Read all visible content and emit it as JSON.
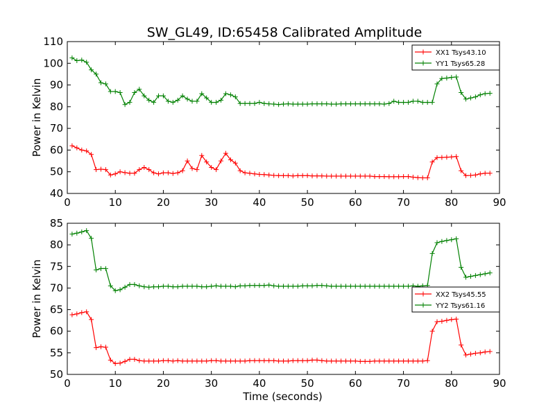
{
  "figure": {
    "title": "SW_GL49, ID:65458 Calibrated Amplitude"
  },
  "chart_data": [
    {
      "type": "line",
      "title": "SW_GL49, ID:65458 Calibrated Amplitude",
      "xlabel": "",
      "ylabel": "Power in Kelvin",
      "xlim": [
        0,
        90
      ],
      "ylim": [
        40,
        110
      ],
      "xticks": [
        0,
        10,
        20,
        30,
        40,
        50,
        60,
        70,
        80,
        90
      ],
      "yticks": [
        40,
        50,
        60,
        70,
        80,
        90,
        100,
        110
      ],
      "grid": false,
      "legend": "top-right",
      "x": [
        1,
        2,
        3,
        4,
        5,
        6,
        7,
        8,
        9,
        10,
        11,
        12,
        13,
        14,
        15,
        16,
        17,
        18,
        19,
        20,
        21,
        22,
        23,
        24,
        25,
        26,
        27,
        28,
        29,
        30,
        31,
        32,
        33,
        34,
        35,
        36,
        37,
        38,
        39,
        40,
        41,
        42,
        43,
        44,
        45,
        46,
        47,
        48,
        49,
        50,
        51,
        52,
        53,
        54,
        55,
        56,
        57,
        58,
        59,
        60,
        61,
        62,
        63,
        64,
        65,
        66,
        67,
        68,
        69,
        70,
        71,
        72,
        73,
        74,
        75,
        76,
        77,
        78,
        79,
        80,
        81,
        82,
        83,
        84,
        85,
        86,
        87,
        88
      ],
      "series": [
        {
          "name": "XX1 Tsys43.10",
          "color": "#ff0000",
          "values": [
            62,
            61,
            60,
            59.6,
            58,
            51,
            51.2,
            51,
            48.5,
            49,
            50,
            49.6,
            49.3,
            49.3,
            51,
            52,
            51,
            49.5,
            49,
            49.5,
            49.5,
            49.2,
            49.5,
            50.5,
            55,
            51.5,
            51,
            57.5,
            54.5,
            52,
            51,
            55,
            58.5,
            55.5,
            54,
            50.5,
            49.5,
            49.3,
            49,
            48.8,
            48.7,
            48.5,
            48.3,
            48.2,
            48.2,
            48.2,
            48.1,
            48.2,
            48.2,
            48.2,
            48.1,
            48.1,
            48.1,
            48,
            48,
            48,
            48,
            48,
            48,
            48,
            48,
            48,
            48,
            47.8,
            47.8,
            47.8,
            47.7,
            47.7,
            47.7,
            47.8,
            47.8,
            47.5,
            47.3,
            47.2,
            47.2,
            54.5,
            56.5,
            56.6,
            56.7,
            56.8,
            57,
            50.5,
            48.2,
            48.3,
            48.5,
            49,
            49.3,
            49.3
          ]
        },
        {
          "name": "YY1 Tsys65.28",
          "color": "#008000",
          "values": [
            102.5,
            101.2,
            101.5,
            100.5,
            97,
            95,
            91,
            90.5,
            87,
            87,
            86.5,
            81,
            82,
            86.5,
            88,
            85,
            83,
            82,
            85,
            85,
            82.5,
            82,
            83,
            85,
            83.5,
            82.5,
            82.5,
            86,
            84,
            82,
            82,
            83,
            86,
            85.5,
            84.5,
            81.5,
            81.5,
            81.5,
            81.5,
            82,
            81.5,
            81.3,
            81.2,
            81,
            81.2,
            81.3,
            81.2,
            81.2,
            81.2,
            81.2,
            81.3,
            81.3,
            81.3,
            81.3,
            81.2,
            81.2,
            81.3,
            81.3,
            81.3,
            81.3,
            81.3,
            81.3,
            81.3,
            81.3,
            81.3,
            81.2,
            81.5,
            82.5,
            82,
            82,
            82,
            82.5,
            82.5,
            82,
            82,
            82,
            90.5,
            93,
            93.2,
            93.5,
            93.7,
            86.5,
            83.5,
            84,
            84.5,
            85.5,
            86,
            86.2
          ]
        }
      ]
    },
    {
      "type": "line",
      "title": "",
      "xlabel": "Time (seconds)",
      "ylabel": "Power in Kelvin",
      "xlim": [
        0,
        90
      ],
      "ylim": [
        50,
        85
      ],
      "xticks": [
        0,
        10,
        20,
        30,
        40,
        50,
        60,
        70,
        80,
        90
      ],
      "yticks": [
        50,
        55,
        60,
        65,
        70,
        75,
        80,
        85
      ],
      "grid": false,
      "legend": "center-right",
      "x": [
        1,
        2,
        3,
        4,
        5,
        6,
        7,
        8,
        9,
        10,
        11,
        12,
        13,
        14,
        15,
        16,
        17,
        18,
        19,
        20,
        21,
        22,
        23,
        24,
        25,
        26,
        27,
        28,
        29,
        30,
        31,
        32,
        33,
        34,
        35,
        36,
        37,
        38,
        39,
        40,
        41,
        42,
        43,
        44,
        45,
        46,
        47,
        48,
        49,
        50,
        51,
        52,
        53,
        54,
        55,
        56,
        57,
        58,
        59,
        60,
        61,
        62,
        63,
        64,
        65,
        66,
        67,
        68,
        69,
        70,
        71,
        72,
        73,
        74,
        75,
        76,
        77,
        78,
        79,
        80,
        81,
        82,
        83,
        84,
        85,
        86,
        87,
        88
      ],
      "series": [
        {
          "name": "XX2 Tsys45.55",
          "color": "#ff0000",
          "values": [
            63.8,
            64,
            64.3,
            64.5,
            62.7,
            56.2,
            56.4,
            56.3,
            53.3,
            52.5,
            52.6,
            53,
            53.5,
            53.5,
            53.2,
            53.1,
            53.1,
            53.1,
            53.1,
            53.2,
            53.2,
            53.1,
            53.2,
            53.1,
            53.1,
            53.1,
            53.1,
            53.1,
            53.1,
            53.2,
            53.2,
            53.1,
            53.1,
            53.1,
            53.1,
            53.1,
            53.1,
            53.2,
            53.2,
            53.2,
            53.2,
            53.2,
            53.2,
            53.1,
            53.1,
            53.1,
            53.2,
            53.2,
            53.2,
            53.2,
            53.3,
            53.3,
            53.2,
            53.1,
            53.1,
            53.1,
            53.1,
            53.1,
            53.1,
            53.1,
            53,
            53,
            53,
            53.1,
            53.1,
            53.1,
            53.1,
            53.1,
            53.1,
            53.1,
            53.1,
            53.1,
            53.1,
            53.1,
            53.2,
            60,
            62.2,
            62.3,
            62.5,
            62.7,
            62.8,
            56.8,
            54.5,
            54.7,
            54.9,
            55,
            55.2,
            55.3
          ]
        },
        {
          "name": "YY2 Tsys61.16",
          "color": "#008000",
          "values": [
            82.5,
            82.7,
            83,
            83.3,
            81.5,
            74.2,
            74.5,
            74.5,
            70.5,
            69.4,
            69.6,
            70.2,
            70.8,
            70.8,
            70.5,
            70.3,
            70.2,
            70.3,
            70.3,
            70.4,
            70.4,
            70.3,
            70.3,
            70.4,
            70.4,
            70.4,
            70.4,
            70.3,
            70.3,
            70.4,
            70.5,
            70.4,
            70.4,
            70.4,
            70.3,
            70.5,
            70.5,
            70.6,
            70.6,
            70.6,
            70.6,
            70.7,
            70.5,
            70.4,
            70.4,
            70.4,
            70.4,
            70.4,
            70.5,
            70.5,
            70.5,
            70.6,
            70.6,
            70.5,
            70.4,
            70.4,
            70.4,
            70.4,
            70.4,
            70.4,
            70.4,
            70.4,
            70.4,
            70.4,
            70.4,
            70.4,
            70.4,
            70.4,
            70.4,
            70.4,
            70.4,
            70.5,
            70.4,
            70.5,
            70.6,
            78,
            80.5,
            80.8,
            81,
            81.2,
            81.4,
            74.8,
            72.5,
            72.7,
            72.9,
            73.1,
            73.3,
            73.5
          ]
        }
      ]
    }
  ]
}
